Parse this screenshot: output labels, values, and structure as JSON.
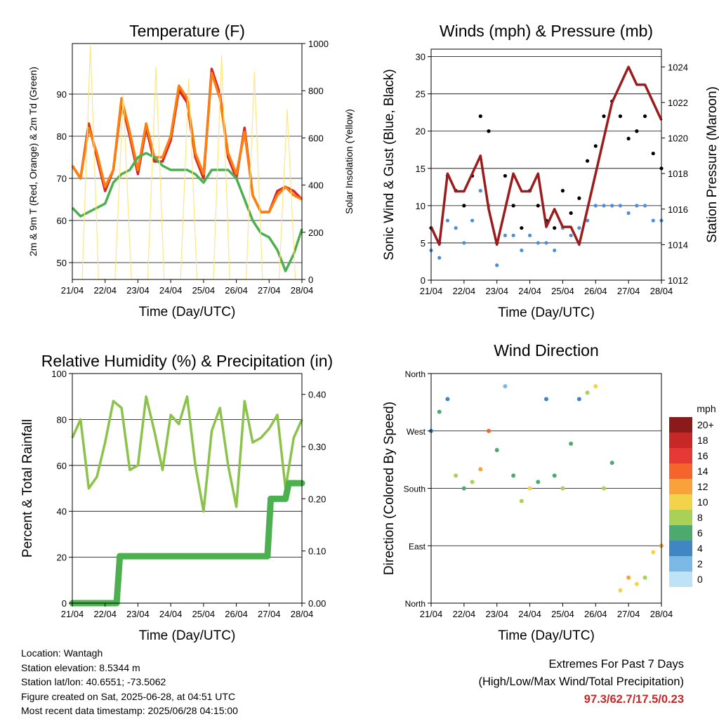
{
  "footer": {
    "location": "Location: Wantagh",
    "elevation": "Station elevation: 8.5344 m",
    "latlon": "Station lat/lon: 40.6551; -73.5062",
    "created": "Figure created on Sat, 2025-06-28, at 04:51 UTC",
    "timestamp": "Most recent data timestamp: 2025/06/28 04:15:00",
    "extremes_title": "Extremes For Past 7 Days",
    "extremes_subtitle": "(High/Low/Max Wind/Total Precipitation)",
    "extremes_values": "97.3/62.7/17.5/0.23"
  },
  "chart_data": [
    {
      "type": "line",
      "title": "Temperature (F)",
      "xlabel": "Time (Day/UTC)",
      "ylabel": "2m & 9m T (Red, Orange) & 2m Td (Green)",
      "ylabel_right": "Solar Insolation (Yellow)",
      "x_ticks": [
        "21/04",
        "22/04",
        "23/04",
        "24/04",
        "25/04",
        "26/04",
        "27/04",
        "28/04"
      ],
      "ylim": [
        46,
        102
      ],
      "y_ticks": [
        50,
        60,
        70,
        80,
        90
      ],
      "ylim_right": [
        0,
        1000
      ],
      "y_ticks_right": [
        0,
        200,
        400,
        600,
        800,
        1000
      ],
      "grid": "horizontal",
      "x": [
        0,
        0.25,
        0.5,
        0.75,
        1,
        1.25,
        1.5,
        1.75,
        2,
        2.25,
        2.5,
        2.75,
        3,
        3.25,
        3.5,
        3.75,
        4,
        4.25,
        4.5,
        4.75,
        5,
        5.25,
        5.5,
        5.75,
        6,
        6.25,
        6.5,
        6.75,
        7
      ],
      "series": [
        {
          "color": "#d62728",
          "values": [
            73,
            70,
            83,
            75,
            67,
            72,
            88,
            80,
            71,
            82,
            74,
            74,
            79,
            91,
            88,
            75,
            70,
            96,
            90,
            75,
            70,
            82,
            66,
            62,
            62,
            67,
            68,
            67,
            65
          ]
        },
        {
          "color": "#ff7f0e",
          "values": [
            73,
            70,
            82,
            76,
            68,
            72,
            89,
            81,
            72,
            83,
            75,
            75,
            80,
            92,
            89,
            76,
            71,
            95,
            89,
            76,
            71,
            81,
            66,
            62,
            62,
            66,
            68,
            66,
            65
          ]
        },
        {
          "color": "#4caf50",
          "values": [
            63,
            61,
            62,
            63,
            64,
            69,
            71,
            72,
            75,
            76,
            75,
            73,
            72,
            72,
            72,
            71,
            69,
            72,
            72,
            72,
            70,
            65,
            60,
            57,
            56,
            53,
            48,
            52,
            58
          ]
        },
        {
          "color": "#ffe680",
          "axis": "right",
          "x": [
            0.3,
            0.55,
            0.8,
            1.3,
            1.55,
            1.8,
            2.3,
            2.55,
            2.8,
            3.3,
            3.55,
            3.8,
            4.3,
            4.55,
            4.8,
            5.3,
            5.55,
            5.8,
            6.3,
            6.55,
            6.8
          ],
          "values": [
            0,
            990,
            0,
            0,
            780,
            0,
            0,
            900,
            0,
            0,
            850,
            0,
            0,
            950,
            0,
            0,
            880,
            0,
            0,
            720,
            0
          ]
        }
      ]
    },
    {
      "type": "scatter",
      "title": "Winds (mph) & Pressure (mb)",
      "xlabel": "Time (Day/UTC)",
      "ylabel": "Sonic Wind & Gust (Blue, Black)",
      "ylabel_right": "Station Pressure (Maroon)",
      "x_ticks": [
        "21/04",
        "22/04",
        "23/04",
        "24/04",
        "25/04",
        "26/04",
        "27/04",
        "28/04"
      ],
      "ylim": [
        0,
        31
      ],
      "y_ticks": [
        0,
        5,
        10,
        15,
        20,
        25,
        30
      ],
      "ylim_right": [
        1012,
        1025
      ],
      "y_ticks_right": [
        1012,
        1014,
        1016,
        1018,
        1020,
        1022,
        1024
      ],
      "grid": "horizontal",
      "x": [
        0,
        0.25,
        0.5,
        0.75,
        1,
        1.25,
        1.5,
        1.75,
        2,
        2.25,
        2.5,
        2.75,
        3,
        3.25,
        3.5,
        3.75,
        4,
        4.25,
        4.5,
        4.75,
        5,
        5.25,
        5.5,
        5.75,
        6,
        6.25,
        6.5,
        6.75,
        7
      ],
      "series": [
        {
          "color": "#000000",
          "values": [
            7,
            5,
            14,
            12,
            10,
            14,
            22,
            20,
            5,
            14,
            10,
            7,
            12,
            10,
            8,
            7,
            12,
            9,
            11,
            16,
            18,
            22,
            24,
            22,
            19,
            20,
            22,
            17,
            15
          ]
        },
        {
          "color": "#4a90d9",
          "values": [
            4,
            3,
            8,
            7,
            5,
            8,
            12,
            10,
            2,
            6,
            6,
            4,
            6,
            5,
            5,
            4,
            7,
            6,
            7,
            8,
            10,
            10,
            10,
            10,
            9,
            10,
            10,
            8,
            8
          ]
        },
        {
          "color": "#9b1c1c",
          "axis": "right",
          "values": [
            1015,
            1014,
            1018,
            1017,
            1017,
            1018,
            1019,
            1016,
            1014,
            1016,
            1018,
            1017,
            1017,
            1018,
            1015,
            1016,
            1015,
            1015,
            1014,
            1016,
            1018,
            1020,
            1022,
            1023,
            1024,
            1023,
            1023,
            1022,
            1021
          ]
        }
      ]
    },
    {
      "type": "line",
      "title": "Relative Humidity (%) & Precipitation (in)",
      "xlabel": "Time (Day/UTC)",
      "ylabel": "Percent & Total Rainfall",
      "x_ticks": [
        "21/04",
        "22/04",
        "23/04",
        "24/04",
        "25/04",
        "26/04",
        "27/04",
        "28/04"
      ],
      "ylim": [
        0,
        100
      ],
      "y_ticks": [
        0,
        20,
        40,
        60,
        80,
        100
      ],
      "ylim_right": [
        0,
        0.44
      ],
      "y_ticks_right": [
        "0.00",
        "0.10",
        "0.20",
        "0.30",
        "0.40"
      ],
      "grid": "horizontal",
      "x": [
        0,
        0.25,
        0.5,
        0.75,
        1,
        1.25,
        1.5,
        1.75,
        2,
        2.25,
        2.5,
        2.75,
        3,
        3.25,
        3.5,
        3.75,
        4,
        4.25,
        4.5,
        4.75,
        5,
        5.25,
        5.5,
        5.75,
        6,
        6.25,
        6.5,
        6.75,
        7
      ],
      "series": [
        {
          "color": "#8bc34a",
          "values": [
            72,
            80,
            50,
            55,
            70,
            88,
            85,
            58,
            60,
            90,
            75,
            58,
            82,
            78,
            90,
            60,
            40,
            75,
            85,
            60,
            42,
            88,
            70,
            72,
            76,
            82,
            50,
            72,
            80
          ]
        },
        {
          "color": "#4caf50",
          "axis": "right",
          "step": true,
          "x": [
            0,
            1,
            1.35,
            1.45,
            2,
            3,
            4,
            5,
            5.95,
            6.05,
            6.2,
            6.5,
            6.6,
            7
          ],
          "values": [
            0,
            0,
            0,
            0.09,
            0.09,
            0.09,
            0.09,
            0.09,
            0.09,
            0.2,
            0.2,
            0.2,
            0.23,
            0.23
          ]
        }
      ]
    },
    {
      "type": "scatter",
      "title": "Wind Direction",
      "xlabel": "Time (Day/UTC)",
      "ylabel": "Direction (Colored By Speed)",
      "x_ticks": [
        "21/04",
        "22/04",
        "23/04",
        "24/04",
        "25/04",
        "26/04",
        "27/04",
        "28/04"
      ],
      "y_ticks": [
        "North",
        "East",
        "South",
        "West",
        "North"
      ],
      "ylim": [
        0,
        360
      ],
      "grid": "horizontal",
      "x": [
        0,
        0.25,
        0.5,
        0.75,
        1,
        1.25,
        1.5,
        1.75,
        2,
        2.25,
        2.5,
        2.75,
        3,
        3.25,
        3.5,
        3.75,
        4,
        4.25,
        4.5,
        4.75,
        5,
        5.25,
        5.5,
        5.75,
        6,
        6.25,
        6.5,
        6.75,
        7
      ],
      "values": [
        270,
        300,
        320,
        200,
        180,
        190,
        210,
        270,
        240,
        340,
        200,
        160,
        180,
        190,
        320,
        200,
        180,
        250,
        320,
        330,
        340,
        180,
        220,
        20,
        40,
        30,
        40,
        80,
        90
      ],
      "speeds": [
        4,
        6,
        4,
        8,
        6,
        8,
        12,
        14,
        6,
        2,
        6,
        8,
        10,
        6,
        4,
        6,
        8,
        6,
        4,
        8,
        10,
        8,
        6,
        10,
        12,
        10,
        8,
        10,
        12
      ],
      "legend_title": "mph",
      "legend_labels": [
        "20+",
        "18",
        "16",
        "14",
        "12",
        "10",
        "8",
        "6",
        "4",
        "2",
        "0"
      ],
      "legend_colors": [
        "#8b1a1a",
        "#c62828",
        "#e53935",
        "#f4642c",
        "#f9a23c",
        "#f3d34a",
        "#a9d157",
        "#4caa6e",
        "#3f86c2",
        "#7ab8e6",
        "#bfe3f6"
      ]
    }
  ]
}
